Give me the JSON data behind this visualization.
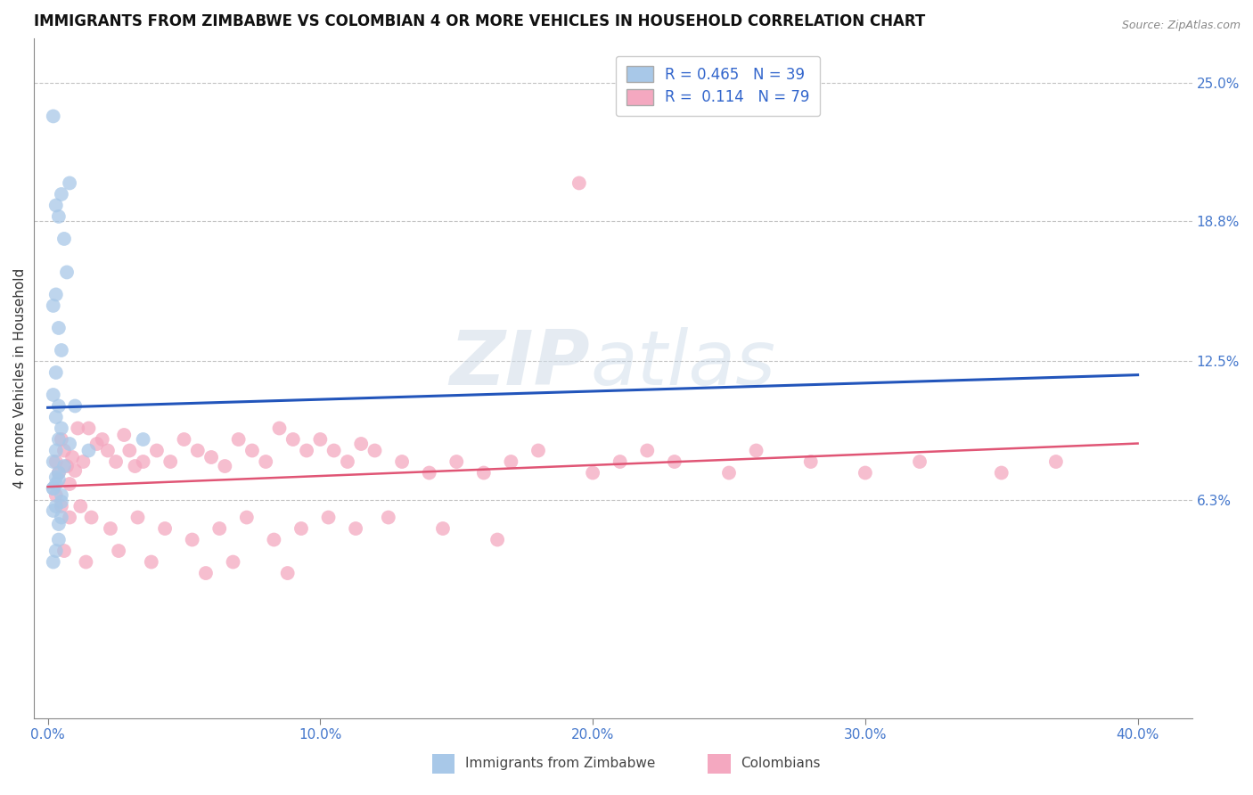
{
  "title": "IMMIGRANTS FROM ZIMBABWE VS COLOMBIAN 4 OR MORE VEHICLES IN HOUSEHOLD CORRELATION CHART",
  "source_text": "Source: ZipAtlas.com",
  "ylabel": "4 or more Vehicles in Household",
  "xticklabels": [
    "0.0%",
    "10.0%",
    "20.0%",
    "30.0%",
    "40.0%"
  ],
  "xticks": [
    0.0,
    10.0,
    20.0,
    30.0,
    40.0
  ],
  "yticks_right": [
    6.3,
    12.5,
    18.8,
    25.0
  ],
  "ytick_labels_right": [
    "6.3%",
    "12.5%",
    "18.8%",
    "25.0%"
  ],
  "ylim": [
    -3.5,
    27
  ],
  "xlim": [
    -0.5,
    42
  ],
  "legend_r1": "R = 0.465",
  "legend_n1": "N = 39",
  "legend_r2": "R =  0.114",
  "legend_n2": "N = 79",
  "blue_color": "#a8c8e8",
  "pink_color": "#f4a8c0",
  "trend_blue": "#2255bb",
  "trend_pink": "#e05575",
  "watermark_zip": "ZIP",
  "watermark_atlas": "atlas",
  "blue_scatter_x": [
    0.2,
    0.5,
    0.8,
    0.3,
    0.4,
    0.6,
    0.7,
    0.3,
    0.2,
    0.4,
    0.5,
    0.3,
    0.2,
    0.4,
    0.3,
    0.5,
    0.4,
    0.3,
    0.2,
    0.4,
    0.3,
    0.2,
    0.5,
    0.4,
    0.6,
    0.3,
    0.2,
    1.0,
    0.8,
    0.5,
    3.5,
    1.5,
    0.3,
    0.2,
    0.4,
    0.3,
    0.4,
    0.2,
    0.5
  ],
  "blue_scatter_y": [
    23.5,
    20.0,
    20.5,
    19.5,
    19.0,
    18.0,
    16.5,
    15.5,
    15.0,
    14.0,
    13.0,
    12.0,
    11.0,
    10.5,
    10.0,
    9.5,
    9.0,
    8.5,
    8.0,
    7.5,
    7.0,
    6.8,
    6.5,
    7.2,
    7.8,
    7.3,
    6.8,
    10.5,
    8.8,
    5.5,
    9.0,
    8.5,
    6.0,
    5.8,
    4.5,
    4.0,
    5.2,
    3.5,
    6.2
  ],
  "pink_scatter_x": [
    19.5,
    0.3,
    0.4,
    0.5,
    0.6,
    0.7,
    0.8,
    0.9,
    1.0,
    1.1,
    1.3,
    1.5,
    1.8,
    2.0,
    2.2,
    2.5,
    2.8,
    3.0,
    3.2,
    3.5,
    4.0,
    4.5,
    5.0,
    5.5,
    6.0,
    6.5,
    7.0,
    7.5,
    8.0,
    8.5,
    9.0,
    9.5,
    10.0,
    10.5,
    11.0,
    11.5,
    12.0,
    13.0,
    14.0,
    15.0,
    16.0,
    17.0,
    18.0,
    20.0,
    21.0,
    22.0,
    23.0,
    25.0,
    26.0,
    28.0,
    30.0,
    32.0,
    35.0,
    37.0,
    0.3,
    0.5,
    0.8,
    1.2,
    1.6,
    2.3,
    3.3,
    4.3,
    5.3,
    6.3,
    7.3,
    8.3,
    9.3,
    10.3,
    11.3,
    12.5,
    14.5,
    16.5,
    0.6,
    1.4,
    2.6,
    3.8,
    5.8,
    6.8,
    8.8
  ],
  "pink_scatter_y": [
    20.5,
    8.0,
    7.5,
    9.0,
    8.5,
    7.8,
    7.0,
    8.2,
    7.6,
    9.5,
    8.0,
    9.5,
    8.8,
    9.0,
    8.5,
    8.0,
    9.2,
    8.5,
    7.8,
    8.0,
    8.5,
    8.0,
    9.0,
    8.5,
    8.2,
    7.8,
    9.0,
    8.5,
    8.0,
    9.5,
    9.0,
    8.5,
    9.0,
    8.5,
    8.0,
    8.8,
    8.5,
    8.0,
    7.5,
    8.0,
    7.5,
    8.0,
    8.5,
    7.5,
    8.0,
    8.5,
    8.0,
    7.5,
    8.5,
    8.0,
    7.5,
    8.0,
    7.5,
    8.0,
    6.5,
    6.0,
    5.5,
    6.0,
    5.5,
    5.0,
    5.5,
    5.0,
    4.5,
    5.0,
    5.5,
    4.5,
    5.0,
    5.5,
    5.0,
    5.5,
    5.0,
    4.5,
    4.0,
    3.5,
    4.0,
    3.5,
    3.0,
    3.5,
    3.0
  ],
  "title_fontsize": 12,
  "axis_label_fontsize": 11,
  "tick_fontsize": 11,
  "legend_fontsize": 12
}
